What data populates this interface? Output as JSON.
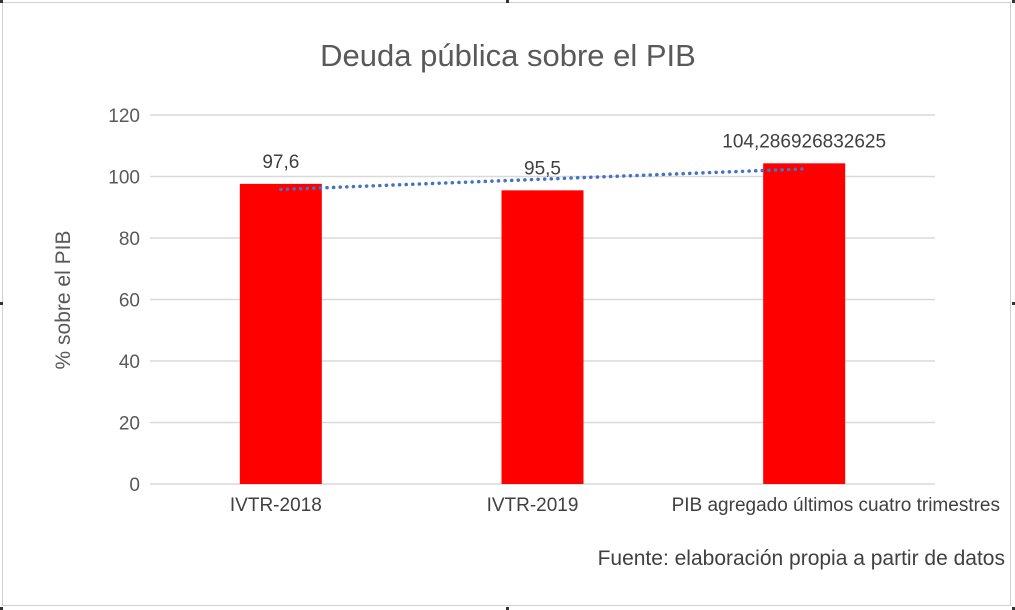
{
  "chart_data": {
    "type": "bar",
    "title": "Deuda pública sobre el PIB",
    "ylabel": "% sobre el PIB",
    "xlabel": "",
    "categories": [
      "IVTR-2018",
      "IVTR-2019",
      "PIB agregado últimos cuatro trimestres"
    ],
    "values": [
      97.6,
      95.5,
      104.286926832625
    ],
    "data_labels": [
      "97,6",
      "95,5",
      "104,286926832625"
    ],
    "ylim": [
      0,
      120
    ],
    "yticks": [
      0,
      20,
      40,
      60,
      80,
      100,
      120
    ],
    "grid": true,
    "trendline": "linear",
    "bar_color": "#ff0000",
    "trendline_color": "#4472c4",
    "source_note": "Fuente: elaboración propia a partir de datos"
  }
}
